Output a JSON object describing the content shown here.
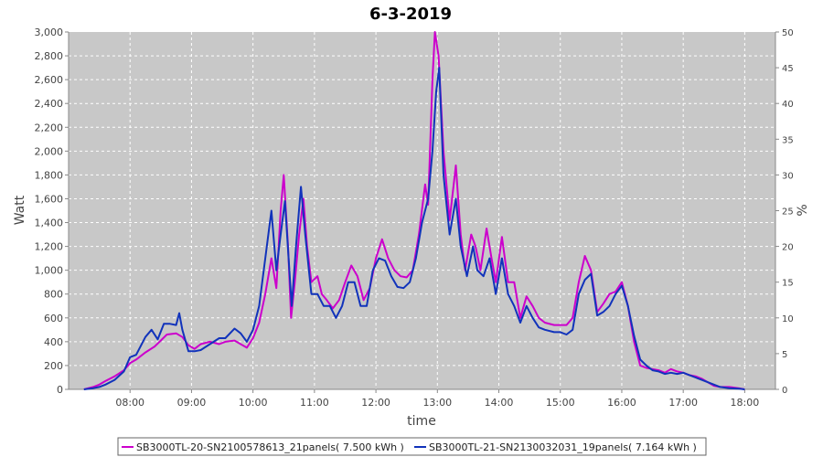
{
  "chart_data": {
    "type": "line",
    "title": "6-3-2019",
    "xlabel": "time",
    "ylabel": "Watt",
    "y2label": "%",
    "xlim": [
      7.0,
      18.5
    ],
    "ylim": [
      0,
      3000
    ],
    "y2lim": [
      0,
      50
    ],
    "x_ticks": [
      {
        "v": 8,
        "label": "08:00"
      },
      {
        "v": 9,
        "label": "09:00"
      },
      {
        "v": 10,
        "label": "10:00"
      },
      {
        "v": 11,
        "label": "11:00"
      },
      {
        "v": 12,
        "label": "12:00"
      },
      {
        "v": 13,
        "label": "13:00"
      },
      {
        "v": 14,
        "label": "14:00"
      },
      {
        "v": 15,
        "label": "15:00"
      },
      {
        "v": 16,
        "label": "16:00"
      },
      {
        "v": 17,
        "label": "17:00"
      },
      {
        "v": 18,
        "label": "18:00"
      }
    ],
    "y_ticks": [
      {
        "v": 0,
        "label": "0"
      },
      {
        "v": 200,
        "label": "200"
      },
      {
        "v": 400,
        "label": "400"
      },
      {
        "v": 600,
        "label": "600"
      },
      {
        "v": 800,
        "label": "800"
      },
      {
        "v": 1000,
        "label": "1,000"
      },
      {
        "v": 1200,
        "label": "1,200"
      },
      {
        "v": 1400,
        "label": "1,400"
      },
      {
        "v": 1600,
        "label": "1,600"
      },
      {
        "v": 1800,
        "label": "1,800"
      },
      {
        "v": 2000,
        "label": "2,000"
      },
      {
        "v": 2200,
        "label": "2,200"
      },
      {
        "v": 2400,
        "label": "2,400"
      },
      {
        "v": 2600,
        "label": "2,600"
      },
      {
        "v": 2800,
        "label": "2,800"
      },
      {
        "v": 3000,
        "label": "3,000"
      }
    ],
    "y2_ticks": [
      {
        "v": 0,
        "label": "0"
      },
      {
        "v": 5,
        "label": "5"
      },
      {
        "v": 10,
        "label": "10"
      },
      {
        "v": 15,
        "label": "15"
      },
      {
        "v": 20,
        "label": "20"
      },
      {
        "v": 25,
        "label": "25"
      },
      {
        "v": 30,
        "label": "30"
      },
      {
        "v": 35,
        "label": "35"
      },
      {
        "v": 40,
        "label": "40"
      },
      {
        "v": 45,
        "label": "45"
      },
      {
        "v": 50,
        "label": "50"
      }
    ],
    "grid": true,
    "legend_position": "bottom",
    "background_color": "#c8c8c8",
    "series": [
      {
        "name": "SB3000TL-20-SN2100578613_21panels( 7.500 kWh )",
        "color": "#cc00cc",
        "points": [
          [
            7.25,
            0
          ],
          [
            7.4,
            20
          ],
          [
            7.5,
            40
          ],
          [
            7.6,
            70
          ],
          [
            7.75,
            110
          ],
          [
            7.9,
            160
          ],
          [
            8.0,
            220
          ],
          [
            8.1,
            250
          ],
          [
            8.25,
            310
          ],
          [
            8.4,
            360
          ],
          [
            8.5,
            410
          ],
          [
            8.6,
            460
          ],
          [
            8.75,
            470
          ],
          [
            8.85,
            440
          ],
          [
            8.95,
            370
          ],
          [
            9.05,
            340
          ],
          [
            9.15,
            380
          ],
          [
            9.3,
            400
          ],
          [
            9.45,
            380
          ],
          [
            9.55,
            400
          ],
          [
            9.7,
            410
          ],
          [
            9.8,
            380
          ],
          [
            9.9,
            350
          ],
          [
            10.0,
            430
          ],
          [
            10.1,
            560
          ],
          [
            10.2,
            800
          ],
          [
            10.3,
            1100
          ],
          [
            10.38,
            850
          ],
          [
            10.45,
            1500
          ],
          [
            10.5,
            1800
          ],
          [
            10.57,
            1200
          ],
          [
            10.62,
            600
          ],
          [
            10.68,
            900
          ],
          [
            10.75,
            1300
          ],
          [
            10.82,
            1600
          ],
          [
            10.88,
            1200
          ],
          [
            10.95,
            900
          ],
          [
            11.05,
            950
          ],
          [
            11.12,
            800
          ],
          [
            11.2,
            750
          ],
          [
            11.3,
            680
          ],
          [
            11.4,
            750
          ],
          [
            11.5,
            900
          ],
          [
            11.6,
            1040
          ],
          [
            11.7,
            950
          ],
          [
            11.8,
            750
          ],
          [
            11.9,
            850
          ],
          [
            12.0,
            1100
          ],
          [
            12.1,
            1260
          ],
          [
            12.2,
            1100
          ],
          [
            12.3,
            1000
          ],
          [
            12.4,
            950
          ],
          [
            12.5,
            940
          ],
          [
            12.6,
            1000
          ],
          [
            12.7,
            1300
          ],
          [
            12.8,
            1720
          ],
          [
            12.85,
            1550
          ],
          [
            12.92,
            2600
          ],
          [
            12.96,
            3000
          ],
          [
            13.02,
            2800
          ],
          [
            13.1,
            2000
          ],
          [
            13.2,
            1420
          ],
          [
            13.3,
            1880
          ],
          [
            13.38,
            1300
          ],
          [
            13.45,
            1000
          ],
          [
            13.55,
            1300
          ],
          [
            13.62,
            1200
          ],
          [
            13.7,
            1000
          ],
          [
            13.8,
            1350
          ],
          [
            13.88,
            1100
          ],
          [
            13.95,
            900
          ],
          [
            14.05,
            1280
          ],
          [
            14.15,
            900
          ],
          [
            14.25,
            900
          ],
          [
            14.35,
            600
          ],
          [
            14.45,
            780
          ],
          [
            14.55,
            700
          ],
          [
            14.65,
            600
          ],
          [
            14.75,
            560
          ],
          [
            14.9,
            540
          ],
          [
            15.0,
            540
          ],
          [
            15.1,
            540
          ],
          [
            15.2,
            600
          ],
          [
            15.3,
            900
          ],
          [
            15.4,
            1120
          ],
          [
            15.5,
            1000
          ],
          [
            15.6,
            650
          ],
          [
            15.7,
            720
          ],
          [
            15.8,
            800
          ],
          [
            15.9,
            820
          ],
          [
            16.0,
            900
          ],
          [
            16.1,
            700
          ],
          [
            16.2,
            400
          ],
          [
            16.3,
            200
          ],
          [
            16.4,
            180
          ],
          [
            16.5,
            170
          ],
          [
            16.6,
            160
          ],
          [
            16.7,
            140
          ],
          [
            16.8,
            170
          ],
          [
            16.9,
            150
          ],
          [
            17.0,
            140
          ],
          [
            17.1,
            120
          ],
          [
            17.2,
            110
          ],
          [
            17.3,
            90
          ],
          [
            17.4,
            60
          ],
          [
            17.5,
            30
          ],
          [
            17.6,
            20
          ],
          [
            17.75,
            20
          ],
          [
            17.9,
            10
          ],
          [
            18.0,
            0
          ]
        ]
      },
      {
        "name": "SB3000TL-21-SN2130032031_19panels( 7.164 kWh )",
        "color": "#1133bb",
        "points": [
          [
            7.25,
            0
          ],
          [
            7.4,
            10
          ],
          [
            7.5,
            20
          ],
          [
            7.6,
            40
          ],
          [
            7.75,
            80
          ],
          [
            7.9,
            150
          ],
          [
            8.0,
            270
          ],
          [
            8.1,
            290
          ],
          [
            8.25,
            440
          ],
          [
            8.35,
            500
          ],
          [
            8.45,
            420
          ],
          [
            8.55,
            550
          ],
          [
            8.65,
            550
          ],
          [
            8.75,
            540
          ],
          [
            8.8,
            640
          ],
          [
            8.85,
            500
          ],
          [
            8.95,
            320
          ],
          [
            9.05,
            320
          ],
          [
            9.15,
            330
          ],
          [
            9.3,
            380
          ],
          [
            9.45,
            430
          ],
          [
            9.55,
            430
          ],
          [
            9.7,
            510
          ],
          [
            9.8,
            470
          ],
          [
            9.9,
            400
          ],
          [
            10.0,
            500
          ],
          [
            10.1,
            700
          ],
          [
            10.2,
            1100
          ],
          [
            10.3,
            1500
          ],
          [
            10.38,
            1000
          ],
          [
            10.45,
            1300
          ],
          [
            10.52,
            1580
          ],
          [
            10.58,
            1100
          ],
          [
            10.63,
            700
          ],
          [
            10.7,
            1200
          ],
          [
            10.78,
            1700
          ],
          [
            10.85,
            1300
          ],
          [
            10.95,
            800
          ],
          [
            11.05,
            800
          ],
          [
            11.15,
            700
          ],
          [
            11.25,
            700
          ],
          [
            11.35,
            600
          ],
          [
            11.45,
            700
          ],
          [
            11.55,
            900
          ],
          [
            11.65,
            900
          ],
          [
            11.75,
            700
          ],
          [
            11.85,
            700
          ],
          [
            11.95,
            1000
          ],
          [
            12.05,
            1100
          ],
          [
            12.15,
            1080
          ],
          [
            12.25,
            950
          ],
          [
            12.35,
            860
          ],
          [
            12.45,
            850
          ],
          [
            12.55,
            900
          ],
          [
            12.65,
            1100
          ],
          [
            12.75,
            1400
          ],
          [
            12.85,
            1600
          ],
          [
            12.92,
            2000
          ],
          [
            12.98,
            2500
          ],
          [
            13.03,
            2700
          ],
          [
            13.1,
            1800
          ],
          [
            13.2,
            1300
          ],
          [
            13.3,
            1600
          ],
          [
            13.38,
            1200
          ],
          [
            13.48,
            950
          ],
          [
            13.58,
            1200
          ],
          [
            13.65,
            1000
          ],
          [
            13.75,
            950
          ],
          [
            13.85,
            1100
          ],
          [
            13.95,
            800
          ],
          [
            14.05,
            1100
          ],
          [
            14.15,
            800
          ],
          [
            14.25,
            700
          ],
          [
            14.35,
            560
          ],
          [
            14.45,
            700
          ],
          [
            14.55,
            600
          ],
          [
            14.65,
            520
          ],
          [
            14.75,
            500
          ],
          [
            14.9,
            480
          ],
          [
            15.0,
            480
          ],
          [
            15.1,
            460
          ],
          [
            15.2,
            500
          ],
          [
            15.3,
            800
          ],
          [
            15.4,
            920
          ],
          [
            15.5,
            970
          ],
          [
            15.6,
            620
          ],
          [
            15.7,
            650
          ],
          [
            15.8,
            700
          ],
          [
            15.9,
            800
          ],
          [
            16.0,
            870
          ],
          [
            16.1,
            700
          ],
          [
            16.2,
            450
          ],
          [
            16.3,
            250
          ],
          [
            16.4,
            200
          ],
          [
            16.5,
            160
          ],
          [
            16.6,
            150
          ],
          [
            16.7,
            130
          ],
          [
            16.8,
            140
          ],
          [
            16.9,
            130
          ],
          [
            17.0,
            140
          ],
          [
            17.1,
            120
          ],
          [
            17.2,
            100
          ],
          [
            17.3,
            80
          ],
          [
            17.4,
            60
          ],
          [
            17.5,
            40
          ],
          [
            17.6,
            20
          ],
          [
            17.75,
            10
          ],
          [
            17.9,
            5
          ],
          [
            18.0,
            0
          ]
        ]
      }
    ]
  }
}
